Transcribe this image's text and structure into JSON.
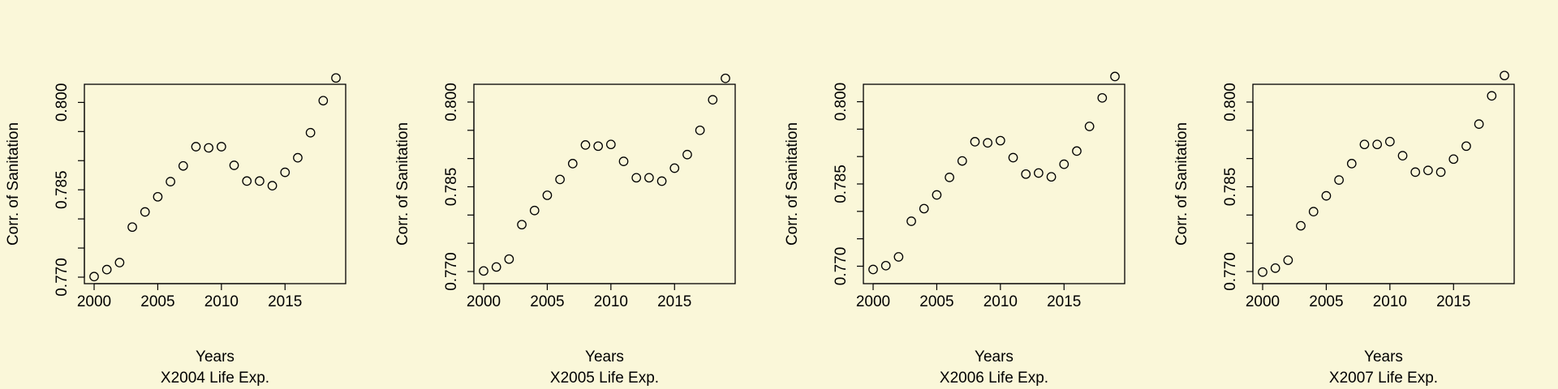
{
  "chart_data": [
    {
      "type": "scatter",
      "xlabel": "Years",
      "subtitle": "X2004 Life Exp.",
      "ylabel": "Corr. of Sanitation",
      "xlim": [
        2000,
        2019
      ],
      "ylim": [
        0.77,
        0.802
      ],
      "xticks": [
        "2000",
        "2005",
        "2010",
        "2015"
      ],
      "yticks": [
        "0.770",
        "0.785",
        "0.800"
      ],
      "x": [
        2000,
        2001,
        2002,
        2003,
        2004,
        2005,
        2006,
        2007,
        2008,
        2009,
        2010,
        2011,
        2012,
        2013,
        2014,
        2015,
        2016,
        2017,
        2018,
        2019
      ],
      "y": [
        0.7701,
        0.7713,
        0.7725,
        0.7786,
        0.7812,
        0.7838,
        0.7864,
        0.7891,
        0.7924,
        0.7922,
        0.7924,
        0.7892,
        0.7865,
        0.7865,
        0.7857,
        0.788,
        0.7905,
        0.7948,
        0.8003,
        0.8042
      ]
    },
    {
      "type": "scatter",
      "xlabel": "Years",
      "subtitle": "X2005 Life Exp.",
      "ylabel": "Corr. of Sanitation",
      "xlim": [
        2000,
        2019
      ],
      "ylim": [
        0.769,
        0.802
      ],
      "xticks": [
        "2000",
        "2005",
        "2010",
        "2015"
      ],
      "yticks": [
        "0.770",
        "0.785",
        "0.800"
      ],
      "x": [
        2000,
        2001,
        2002,
        2003,
        2004,
        2005,
        2006,
        2007,
        2008,
        2009,
        2010,
        2011,
        2012,
        2013,
        2014,
        2015,
        2016,
        2017,
        2018,
        2019
      ],
      "y": [
        0.7701,
        0.7708,
        0.7722,
        0.7783,
        0.7808,
        0.7835,
        0.7863,
        0.7891,
        0.7924,
        0.7922,
        0.7925,
        0.7895,
        0.7866,
        0.7866,
        0.786,
        0.7883,
        0.7907,
        0.795,
        0.8004,
        0.8042
      ]
    },
    {
      "type": "scatter",
      "xlabel": "Years",
      "subtitle": "X2006 Life Exp.",
      "ylabel": "Corr. of Sanitation",
      "xlim": [
        2000,
        2019
      ],
      "ylim": [
        0.768,
        0.802
      ],
      "xticks": [
        "2000",
        "2005",
        "2010",
        "2015"
      ],
      "yticks": [
        "0.770",
        "0.785",
        "0.800"
      ],
      "x": [
        2000,
        2001,
        2002,
        2003,
        2004,
        2005,
        2006,
        2007,
        2008,
        2009,
        2010,
        2011,
        2012,
        2013,
        2014,
        2015,
        2016,
        2017,
        2018,
        2019
      ],
      "y": [
        0.7694,
        0.7701,
        0.7717,
        0.7782,
        0.7805,
        0.783,
        0.7862,
        0.7892,
        0.7927,
        0.7925,
        0.7929,
        0.7898,
        0.7868,
        0.787,
        0.7863,
        0.7886,
        0.791,
        0.7955,
        0.8007,
        0.8046
      ]
    },
    {
      "type": "scatter",
      "xlabel": "Years",
      "subtitle": "X2007 Life Exp.",
      "ylabel": "Corr. of Sanitation",
      "xlim": [
        2000,
        2019
      ],
      "ylim": [
        0.769,
        0.802
      ],
      "xticks": [
        "2000",
        "2005",
        "2010",
        "2015"
      ],
      "yticks": [
        "0.770",
        "0.785",
        "0.800"
      ],
      "x": [
        2000,
        2001,
        2002,
        2003,
        2004,
        2005,
        2006,
        2007,
        2008,
        2009,
        2010,
        2011,
        2012,
        2013,
        2014,
        2015,
        2016,
        2017,
        2018,
        2019
      ],
      "y": [
        0.7699,
        0.7706,
        0.772,
        0.7781,
        0.7806,
        0.7834,
        0.7862,
        0.7891,
        0.7925,
        0.7925,
        0.793,
        0.7905,
        0.7876,
        0.7879,
        0.7876,
        0.7899,
        0.7922,
        0.7961,
        0.8011,
        0.8047
      ]
    }
  ]
}
